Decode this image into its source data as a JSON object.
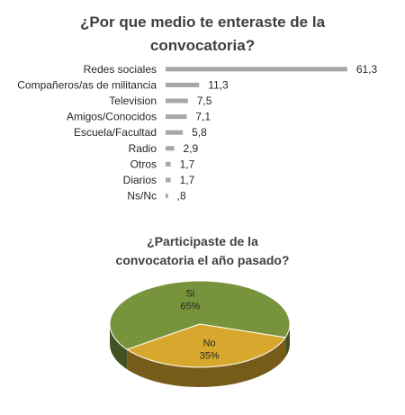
{
  "chart_data": [
    {
      "type": "bar",
      "orientation": "horizontal",
      "title": "¿Por que medio te enteraste de la convocatoria?",
      "title_lines": [
        "¿Por que medio te enteraste de la",
        "convocatoria?"
      ],
      "categories": [
        "Redes sociales",
        "Compañeros/as de militancia",
        "Television",
        "Amigos/Conocidos",
        "Escuela/Facultad",
        "Radio",
        "Otros",
        "Diarios",
        "Ns/Nc"
      ],
      "values": [
        61.3,
        11.3,
        7.5,
        7.1,
        5.8,
        2.9,
        1.7,
        1.7,
        0.8
      ],
      "value_labels": [
        "61,3",
        "11,3",
        "7,5",
        "7,1",
        "5,8",
        "2,9",
        "1,7",
        "1,7",
        ",8"
      ],
      "xlim": [
        0,
        65
      ],
      "grid": false,
      "legend": "none",
      "bar_color": "#a6a6a6"
    },
    {
      "type": "pie",
      "style": "3d",
      "title": "¿Participaste de la convocatoria el año pasado?",
      "title_lines": [
        "¿Participaste de la",
        "convocatoria el año pasado?"
      ],
      "slices": [
        {
          "label": "Si",
          "value": 65,
          "value_label": "65%",
          "color": "#77933c"
        },
        {
          "label": "No",
          "value": 35,
          "value_label": "35%",
          "color": "#d8a82e"
        }
      ],
      "legend": "none"
    }
  ]
}
